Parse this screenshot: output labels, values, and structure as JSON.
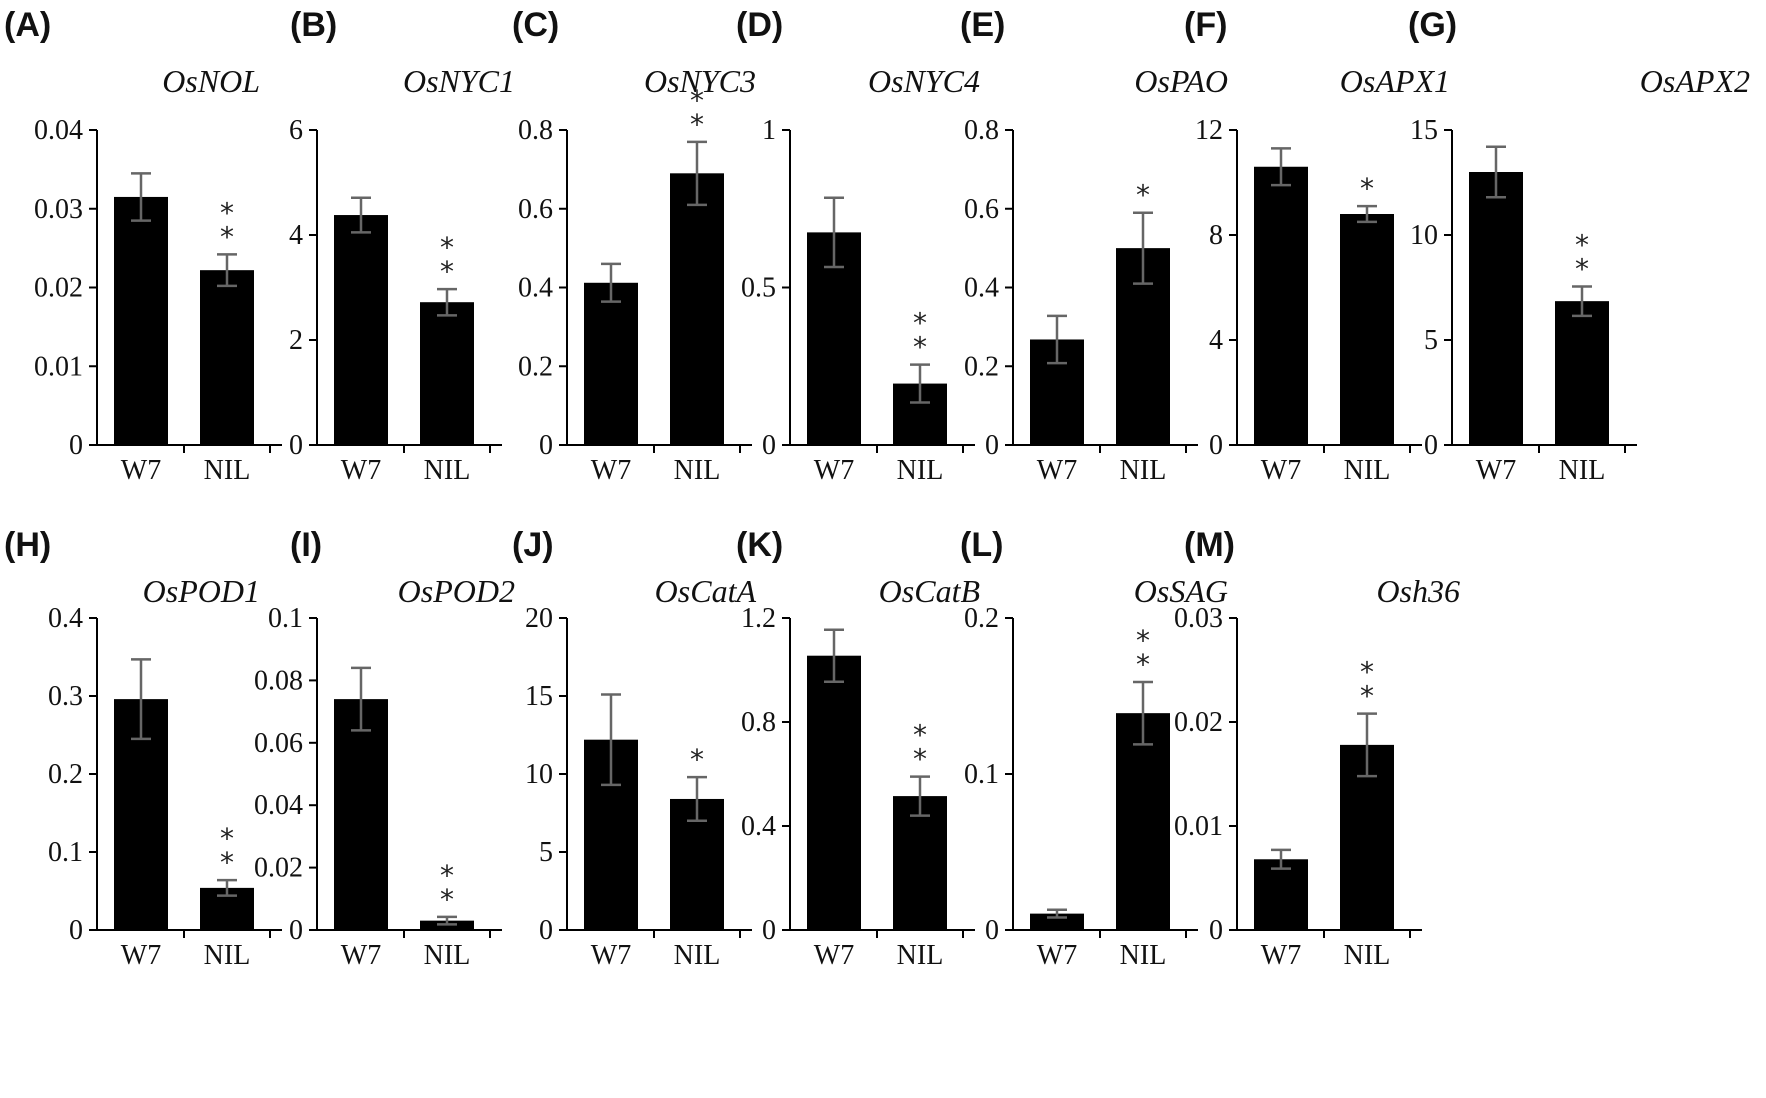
{
  "chart_data": [
    {
      "type": "bar",
      "panel": "(A)",
      "title": "OsNOL",
      "categories": [
        "W7",
        "NIL"
      ],
      "values": [
        0.0315,
        0.0222
      ],
      "errors": [
        0.003,
        0.002
      ],
      "ylim": [
        0,
        0.04
      ],
      "yticks": [
        "0",
        "0.01",
        "0.02",
        "0.03",
        "0.04"
      ],
      "significance": [
        "",
        "**"
      ]
    },
    {
      "type": "bar",
      "panel": "(B)",
      "title": "OsNYC1",
      "categories": [
        "W7",
        "NIL"
      ],
      "values": [
        4.38,
        2.72
      ],
      "errors": [
        0.33,
        0.25
      ],
      "ylim": [
        0,
        6
      ],
      "yticks": [
        "0",
        "2",
        "4",
        "6"
      ],
      "significance": [
        "",
        "**"
      ]
    },
    {
      "type": "bar",
      "panel": "(C)",
      "title": "OsNYC3",
      "categories": [
        "W7",
        "NIL"
      ],
      "values": [
        0.412,
        0.69
      ],
      "errors": [
        0.048,
        0.08
      ],
      "ylim": [
        0,
        0.8
      ],
      "yticks": [
        "0",
        "0.2",
        "0.4",
        "0.6",
        "0.8"
      ],
      "significance": [
        "",
        "**"
      ]
    },
    {
      "type": "bar",
      "panel": "(D)",
      "title": "OsNYC4",
      "categories": [
        "W7",
        "NIL"
      ],
      "values": [
        0.675,
        0.195
      ],
      "errors": [
        0.11,
        0.06
      ],
      "ylim": [
        0,
        1
      ],
      "yticks": [
        "0",
        "0.5",
        "1"
      ],
      "significance": [
        "",
        "**"
      ]
    },
    {
      "type": "bar",
      "panel": "(E)",
      "title": "OsPAO",
      "categories": [
        "W7",
        "NIL"
      ],
      "values": [
        0.268,
        0.5
      ],
      "errors": [
        0.06,
        0.09
      ],
      "ylim": [
        0,
        0.8
      ],
      "yticks": [
        "0",
        "0.2",
        "0.4",
        "0.6",
        "0.8"
      ],
      "significance": [
        "",
        "*"
      ]
    },
    {
      "type": "bar",
      "panel": "(F)",
      "title": "OsAPX1",
      "categories": [
        "W7",
        "NIL"
      ],
      "values": [
        10.6,
        8.8
      ],
      "errors": [
        0.7,
        0.3
      ],
      "ylim": [
        0,
        12
      ],
      "yticks": [
        "0",
        "4",
        "8",
        "12"
      ],
      "significance": [
        "",
        "*"
      ]
    },
    {
      "type": "bar",
      "panel": "(G)",
      "title": "OsAPX2",
      "categories": [
        "W7",
        "NIL"
      ],
      "values": [
        13.0,
        6.85
      ],
      "errors": [
        1.2,
        0.7
      ],
      "ylim": [
        0,
        15
      ],
      "yticks": [
        "0",
        "5",
        "10",
        "15"
      ],
      "significance": [
        "",
        "**"
      ]
    },
    {
      "type": "bar",
      "panel": "(H)",
      "title": "OsPOD1",
      "categories": [
        "W7",
        "NIL"
      ],
      "values": [
        0.296,
        0.054
      ],
      "errors": [
        0.051,
        0.01
      ],
      "ylim": [
        0,
        0.4
      ],
      "yticks": [
        "0",
        "0.1",
        "0.2",
        "0.3",
        "0.4"
      ],
      "significance": [
        "",
        "**"
      ]
    },
    {
      "type": "bar",
      "panel": "(I)",
      "title": "OsPOD2",
      "categories": [
        "W7",
        "NIL"
      ],
      "values": [
        0.074,
        0.003
      ],
      "errors": [
        0.01,
        0.0012
      ],
      "ylim": [
        0,
        0.1
      ],
      "yticks": [
        "0",
        "0.02",
        "0.04",
        "0.06",
        "0.08",
        "0.1"
      ],
      "significance": [
        "",
        "**"
      ]
    },
    {
      "type": "bar",
      "panel": "(J)",
      "title": "OsCatA",
      "categories": [
        "W7",
        "NIL"
      ],
      "values": [
        12.2,
        8.4
      ],
      "errors": [
        2.9,
        1.4
      ],
      "ylim": [
        0,
        20
      ],
      "yticks": [
        "0",
        "5",
        "10",
        "15",
        "20"
      ],
      "significance": [
        "",
        "*"
      ]
    },
    {
      "type": "bar",
      "panel": "(K)",
      "title": "OsCatB",
      "categories": [
        "W7",
        "NIL"
      ],
      "values": [
        1.055,
        0.515
      ],
      "errors": [
        0.1,
        0.075
      ],
      "ylim": [
        0,
        1.2
      ],
      "yticks": [
        "0",
        "0.4",
        "0.8",
        "1.2"
      ],
      "significance": [
        "",
        "**"
      ]
    },
    {
      "type": "bar",
      "panel": "(L)",
      "title": "OsSAG",
      "categories": [
        "W7",
        "NIL"
      ],
      "values": [
        0.0105,
        0.139
      ],
      "errors": [
        0.0025,
        0.02
      ],
      "ylim": [
        0,
        0.2
      ],
      "yticks": [
        "0",
        "0.1",
        "0.2"
      ],
      "significance": [
        "",
        "**"
      ]
    },
    {
      "type": "bar",
      "panel": "(M)",
      "title": "Osh36",
      "categories": [
        "W7",
        "NIL"
      ],
      "values": [
        0.0068,
        0.0178
      ],
      "errors": [
        0.0009,
        0.003
      ],
      "ylim": [
        0,
        0.03
      ],
      "yticks": [
        "0",
        "0.01",
        "0.02",
        "0.03"
      ],
      "significance": [
        "",
        "**"
      ]
    }
  ],
  "colors": {
    "bar": "#000000",
    "error_bar": "#666666",
    "axis": "#000000",
    "text": "#111111"
  }
}
